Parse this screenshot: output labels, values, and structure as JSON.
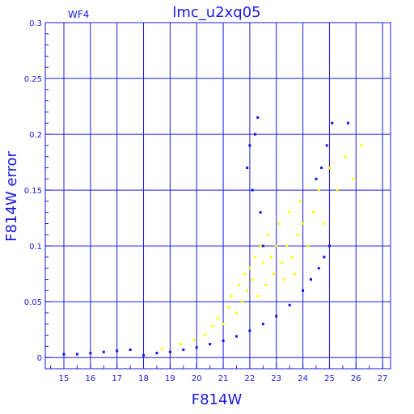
{
  "chart_data": {
    "type": "scatter",
    "title": "lmc_u2xq05",
    "subtitle": "WF4",
    "xlabel": "F814W",
    "ylabel": "F814W error",
    "xlim": [
      14.3,
      27.3
    ],
    "ylim": [
      -0.01,
      0.3
    ],
    "x_ticks": [
      15,
      16,
      17,
      18,
      19,
      20,
      21,
      22,
      23,
      24,
      25,
      26,
      27
    ],
    "y_ticks": [
      0,
      0.05,
      0.1,
      0.15,
      0.2,
      0.25,
      0.3
    ],
    "y_tick_labels": [
      "0",
      "0.05",
      "0.1",
      "0.15",
      "0.2",
      "0.25",
      "0.3"
    ],
    "grid": true,
    "colors": {
      "axis": "#1a1ae0",
      "series_blue": "#1010e8",
      "series_yellow": "#ffff00"
    },
    "series": [
      {
        "color": "yellow",
        "x": [
          18.7,
          19.4,
          19.9,
          20.3,
          20.6,
          20.8,
          21.0,
          21.2,
          21.3,
          21.5,
          21.6,
          21.7,
          21.8,
          21.9,
          22.0,
          22.1,
          22.2,
          22.3,
          22.4,
          22.5,
          22.6,
          22.7,
          22.8,
          22.9,
          23.0,
          23.1,
          23.2,
          23.3,
          23.4,
          23.5,
          23.6,
          23.7,
          23.8,
          23.9,
          24.0,
          24.2,
          24.4,
          24.6,
          24.8,
          25.0,
          25.3,
          25.6,
          25.9,
          26.2
        ],
        "y": [
          0.008,
          0.012,
          0.016,
          0.02,
          0.028,
          0.035,
          0.03,
          0.045,
          0.055,
          0.04,
          0.065,
          0.05,
          0.075,
          0.06,
          0.08,
          0.07,
          0.09,
          0.055,
          0.1,
          0.085,
          0.065,
          0.11,
          0.09,
          0.075,
          0.1,
          0.12,
          0.085,
          0.07,
          0.1,
          0.13,
          0.09,
          0.075,
          0.11,
          0.14,
          0.12,
          0.1,
          0.13,
          0.15,
          0.12,
          0.17,
          0.15,
          0.18,
          0.16,
          0.19
        ]
      },
      {
        "color": "blue",
        "x": [
          15.0,
          15.5,
          16.0,
          16.5,
          17.0,
          17.5,
          18.0,
          18.5,
          19.0,
          19.5,
          20.0,
          20.5,
          21.0,
          21.5,
          22.0,
          22.5,
          23.0,
          23.5,
          24.0,
          24.3,
          24.6,
          24.8,
          25.0,
          21.9,
          22.0,
          22.1,
          22.2,
          22.3,
          22.4,
          22.5,
          24.5,
          24.7,
          24.9,
          25.1,
          25.7
        ],
        "y": [
          0.003,
          0.003,
          0.004,
          0.005,
          0.006,
          0.007,
          0.002,
          0.004,
          0.005,
          0.007,
          0.009,
          0.012,
          0.015,
          0.019,
          0.024,
          0.03,
          0.037,
          0.047,
          0.06,
          0.07,
          0.08,
          0.09,
          0.1,
          0.17,
          0.19,
          0.15,
          0.2,
          0.215,
          0.13,
          0.1,
          0.16,
          0.17,
          0.19,
          0.21,
          0.21
        ]
      }
    ]
  }
}
